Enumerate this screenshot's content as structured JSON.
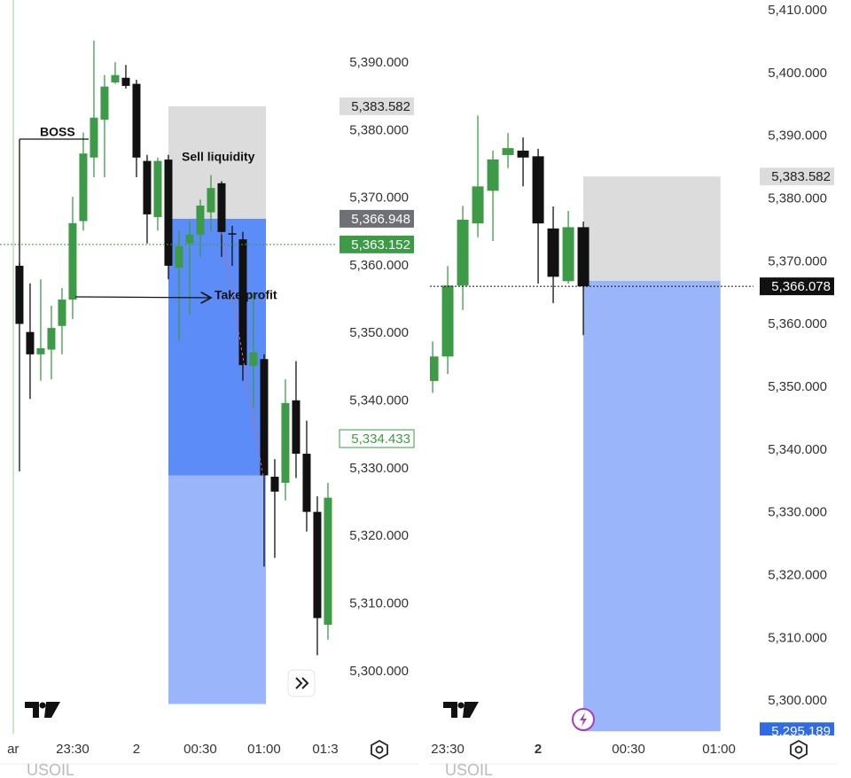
{
  "chart_data": [
    {
      "type": "candlestick",
      "symbol": "USOIL",
      "x": [
        0,
        1,
        2,
        3,
        4,
        5,
        6,
        7,
        8,
        9,
        10,
        11,
        12,
        13,
        14,
        15,
        16,
        17,
        18,
        19,
        20,
        21,
        22,
        23,
        24,
        25,
        26,
        27,
        28,
        29
      ],
      "open": [
        5360.0,
        5350.2,
        5346.9,
        5347.6,
        5351.1,
        5355.0,
        5366.6,
        5376.0,
        5381.6,
        5387.1,
        5387.8,
        5386.9,
        5375.5,
        5367.2,
        5375.7,
        5359.7,
        5363.3,
        5364.6,
        5367.9,
        5372.2,
        5364.8,
        5363.9,
        5345.2,
        5346.2,
        5328.8,
        5327.9,
        5340.1,
        5332.2,
        5323.6,
        5306.9
      ],
      "high": [
        5360.5,
        5357.4,
        5358.0,
        5354.1,
        5356.7,
        5370.2,
        5379.7,
        5393.3,
        5388.2,
        5390.1,
        5389.7,
        5387.5,
        5376.4,
        5376.0,
        5376.4,
        5365.2,
        5366.6,
        5369.8,
        5373.4,
        5372.5,
        5365.9,
        5365.0,
        5356.1,
        5346.9,
        5331.4,
        5343.2,
        5345.9,
        5337.1,
        5325.9,
        5327.9
      ],
      "low": [
        5329.6,
        5340.3,
        5343.0,
        5343.2,
        5346.9,
        5352.1,
        5365.2,
        5373.1,
        5373.1,
        5386.9,
        5386.2,
        5373.1,
        5363.3,
        5365.2,
        5358.0,
        5348.9,
        5352.8,
        5361.3,
        5365.0,
        5361.3,
        5360.0,
        5343.0,
        5339.0,
        5315.5,
        5316.8,
        5325.3,
        5328.6,
        5320.7,
        5302.4,
        5304.7
      ],
      "close": [
        5351.4,
        5346.9,
        5347.8,
        5350.8,
        5355.0,
        5366.3,
        5376.6,
        5381.9,
        5386.5,
        5388.2,
        5386.6,
        5376.0,
        5367.6,
        5375.5,
        5360.0,
        5362.9,
        5364.6,
        5368.9,
        5371.5,
        5365.0,
        5364.6,
        5345.3,
        5347.2,
        5329.0,
        5326.6,
        5339.7,
        5332.2,
        5323.6,
        5307.9,
        5325.7
      ],
      "up_color": "#3d9b48",
      "down_color": "#111111",
      "xlim": [
        -1.83,
        29.67
      ],
      "ylim": [
        5290.8,
        5399.3
      ],
      "xticks": [
        {
          "value": -0.6,
          "label": "ar"
        },
        {
          "value": 5,
          "label": "23:30"
        },
        {
          "value": 11,
          "label": "2"
        },
        {
          "value": 17,
          "label": "00:30"
        },
        {
          "value": 23,
          "label": "01:00"
        },
        {
          "value": 28.75,
          "label": "01:3"
        }
      ],
      "yticks": [
        {
          "value": 5390,
          "label": "5,390.000"
        },
        {
          "value": 5380,
          "label": "5,380.000"
        },
        {
          "value": 5370,
          "label": "5,370.000"
        },
        {
          "value": 5360,
          "label": "5,360.000"
        },
        {
          "value": 5350,
          "label": "5,350.000"
        },
        {
          "value": 5340,
          "label": "5,340.000"
        },
        {
          "value": 5330,
          "label": "5,330.000"
        },
        {
          "value": 5320,
          "label": "5,320.000"
        },
        {
          "value": 5310,
          "label": "5,310.000"
        },
        {
          "value": 5300,
          "label": "5,300.000"
        }
      ],
      "position": {
        "stop": 5383.582,
        "entry": 5366.948,
        "reached": 5329.0,
        "target": 5295.189,
        "start": 14,
        "end": 23.17
      },
      "price_labels": [
        {
          "value": 5383.582,
          "label": "5,383.582",
          "style": "gray"
        },
        {
          "value": 5366.948,
          "label": "5,366.948",
          "style": "dark"
        },
        {
          "value": 5363.152,
          "label": "5,363.152",
          "style": "green",
          "line": true
        },
        {
          "value": 5334.433,
          "label": "5,334.433",
          "style": "green-outline"
        }
      ],
      "annotations": [
        "BOSS",
        "Sell liquidity",
        "Take profit"
      ]
    },
    {
      "type": "candlestick",
      "symbol": "USOIL",
      "x": [
        -1,
        0,
        1,
        2,
        3,
        4,
        5,
        6,
        7,
        8,
        9
      ],
      "open": [
        5351.0,
        5354.9,
        5366.2,
        5376.1,
        5381.3,
        5387.0,
        5387.7,
        5386.8,
        5375.3,
        5366.9,
        5375.5
      ],
      "high": [
        5357.3,
        5369.3,
        5378.9,
        5393.3,
        5387.7,
        5390.5,
        5389.8,
        5388.0,
        5378.8,
        5378.1,
        5376.4
      ],
      "low": [
        5349.1,
        5352.1,
        5362.3,
        5373.9,
        5373.3,
        5384.9,
        5382.0,
        5366.5,
        5363.4,
        5366.5,
        5358.3
      ],
      "close": [
        5354.9,
        5366.2,
        5376.7,
        5382.0,
        5386.3,
        5388.1,
        5386.6,
        5376.1,
        5367.6,
        5375.5,
        5366.078
      ],
      "up_color": "#3d9b48",
      "down_color": "#111111",
      "xlim": [
        -1.18,
        20.29
      ],
      "ylim": [
        5294.8,
        5411.7
      ],
      "xticks": [
        {
          "value": 0,
          "label": "23:30"
        },
        {
          "value": 6,
          "label": "2"
        },
        {
          "value": 12,
          "label": "00:30"
        },
        {
          "value": 18,
          "label": "01:00"
        }
      ],
      "yticks": [
        {
          "value": 5410,
          "label": "5,410.000"
        },
        {
          "value": 5400,
          "label": "5,400.000"
        },
        {
          "value": 5390,
          "label": "5,390.000"
        },
        {
          "value": 5380,
          "label": "5,380.000"
        },
        {
          "value": 5370,
          "label": "5,370.000"
        },
        {
          "value": 5360,
          "label": "5,360.000"
        },
        {
          "value": 5350,
          "label": "5,350.000"
        },
        {
          "value": 5340,
          "label": "5,340.000"
        },
        {
          "value": 5330,
          "label": "5,330.000"
        },
        {
          "value": 5320,
          "label": "5,320.000"
        },
        {
          "value": 5310,
          "label": "5,310.000"
        },
        {
          "value": 5300,
          "label": "5,300.000"
        }
      ],
      "position": {
        "stop": 5383.582,
        "entry": 5366.948,
        "target": 5295.189,
        "start": 9,
        "end": 18.1
      },
      "price_labels": [
        {
          "value": 5383.582,
          "label": "5,383.582",
          "style": "gray"
        },
        {
          "value": 5366.078,
          "label": "5,366.078",
          "style": "black",
          "line": true
        },
        {
          "value": 5295.189,
          "label": "5,295.189",
          "style": "blue"
        }
      ]
    }
  ]
}
